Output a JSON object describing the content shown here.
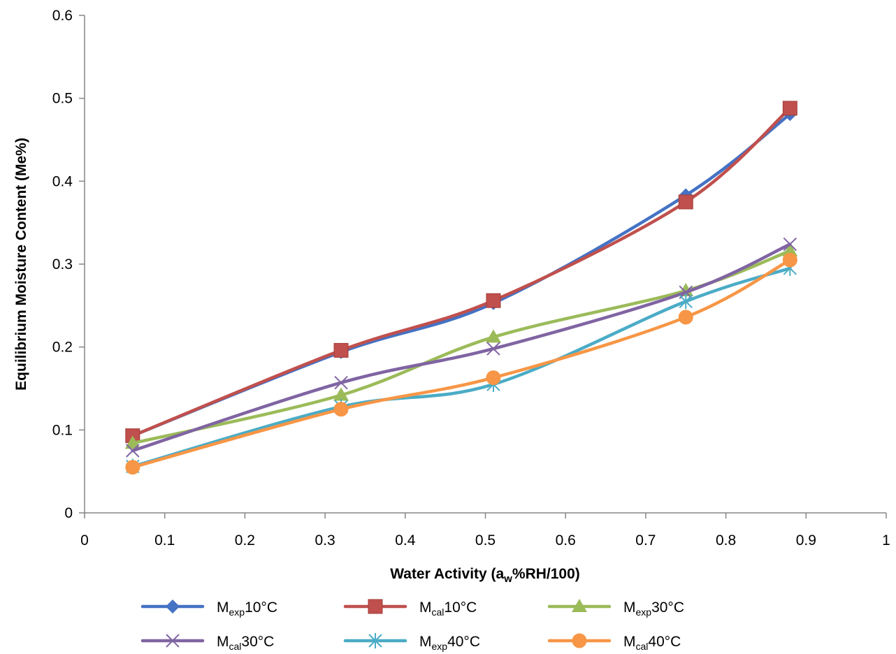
{
  "chart_data": {
    "type": "line",
    "xlabel": "Water Activity (a",
    "xlabel_sub": "w",
    "xlabel_tail": "%RH/100)",
    "ylabel": "Equilibrium Moisture Content (Me%)",
    "xlim": [
      0,
      1
    ],
    "ylim": [
      0,
      0.6
    ],
    "x_ticks": [
      "0",
      "0.1",
      "0.2",
      "0.3",
      "0.4",
      "0.5",
      "0.6",
      "0.7",
      "0.8",
      "0.9",
      "1"
    ],
    "y_ticks": [
      "0",
      "0.1",
      "0.2",
      "0.3",
      "0.4",
      "0.5",
      "0.6"
    ],
    "grid": false,
    "smoothed": true,
    "legend_position": "bottom",
    "x": [
      0.06,
      0.32,
      0.51,
      0.75,
      0.88
    ],
    "series": [
      {
        "name": "Mexp10°C",
        "label_main": "M",
        "label_sub": "exp",
        "label_tail": "10°C",
        "color": "#4472C4",
        "marker": "diamond",
        "values": [
          0.093,
          0.194,
          0.253,
          0.383,
          0.481
        ]
      },
      {
        "name": "Mcal10°C",
        "label_main": "M",
        "label_sub": "cal",
        "label_tail": "10°C",
        "color": "#C0504D",
        "marker": "square",
        "values": [
          0.093,
          0.196,
          0.256,
          0.375,
          0.488
        ]
      },
      {
        "name": "Mexp30°C",
        "label_main": "M",
        "label_sub": "exp",
        "label_tail": "30°C",
        "color": "#9BBB59",
        "marker": "triangle",
        "values": [
          0.084,
          0.142,
          0.212,
          0.268,
          0.316
        ]
      },
      {
        "name": "Mcal30°C",
        "label_main": "M",
        "label_sub": "cal",
        "label_tail": "30°C",
        "color": "#8064A2",
        "marker": "x",
        "values": [
          0.075,
          0.157,
          0.198,
          0.266,
          0.324
        ]
      },
      {
        "name": "Mexp40°C",
        "label_main": "M",
        "label_sub": "exp",
        "label_tail": "40°C",
        "color": "#4BACC6",
        "marker": "star",
        "values": [
          0.056,
          0.128,
          0.155,
          0.255,
          0.295
        ]
      },
      {
        "name": "Mcal40°C",
        "label_main": "M",
        "label_sub": "cal",
        "label_tail": "40°C",
        "color": "#F79646",
        "marker": "circle",
        "values": [
          0.055,
          0.125,
          0.163,
          0.236,
          0.305
        ]
      }
    ]
  }
}
